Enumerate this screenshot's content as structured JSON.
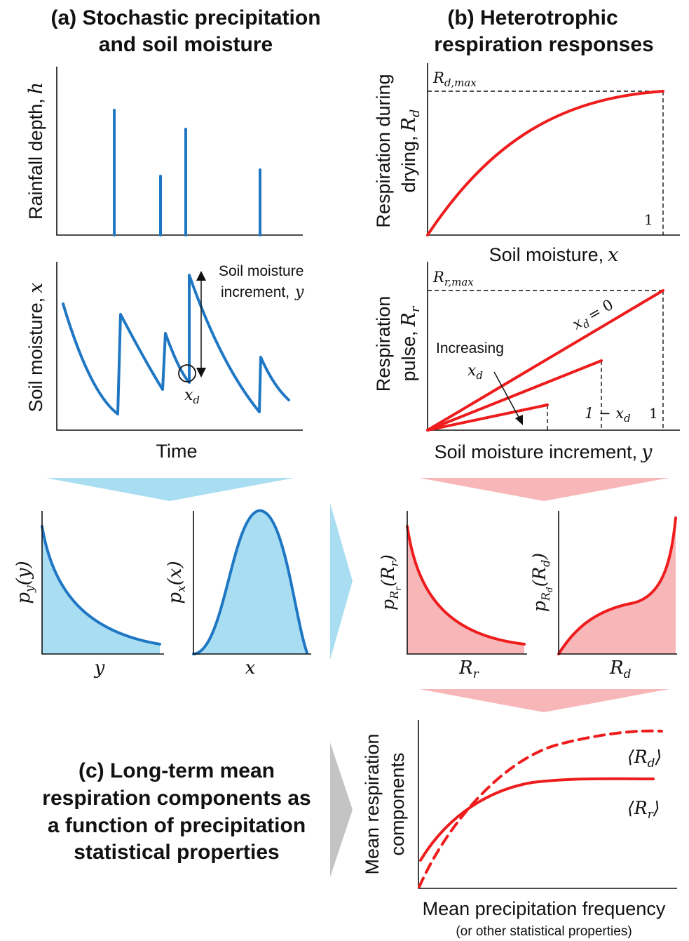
{
  "panel_a": {
    "title_line1": "(a) Stochastic precipitation",
    "title_line2": "and soil moisture",
    "rain_ylabel": "Rainfall depth,",
    "rain_ylabel_var": "h",
    "soil_ylabel": "Soil moisture,",
    "soil_ylabel_var": "x",
    "increment_label_line1": "Soil moisture",
    "increment_label_line2": "increment,",
    "increment_var": "y",
    "xd_label": "x",
    "xd_sub": "d",
    "time_label": "Time"
  },
  "panel_b": {
    "title_line1": "(b) Heterotrophic",
    "title_line2": "respiration responses",
    "rd_ylabel_line1": "Respiration during",
    "rd_ylabel_line2": "drying,",
    "rd_ylabel_var": "R",
    "rd_ylabel_sub": "d",
    "rd_max": "R",
    "rd_max_sub": "d,max",
    "one_label": "1",
    "rd_xlabel": "Soil moisture,",
    "rd_xlabel_var": "x",
    "rr_ylabel_line1": "Respiration",
    "rr_ylabel_line2": "pulse,",
    "rr_ylabel_var": "R",
    "rr_ylabel_sub": "r",
    "rr_max": "R",
    "rr_max_sub": "r,max",
    "xd0_label": "x",
    "xd0_sub": "d",
    "xd0_eq": "= 0",
    "increasing_label": "Increasing",
    "increasing_var": "x",
    "increasing_sub": "d",
    "one_minus": "1 − x",
    "one_minus_sub": "d",
    "one_label2": "1",
    "rr_xlabel": "Soil moisture increment,",
    "rr_xlabel_var": "y"
  },
  "pdfs": {
    "py_label": "p",
    "py_sub": "y",
    "py_arg": "(y)",
    "py_x": "y",
    "px_label": "p",
    "px_sub": "x",
    "px_arg": "(x)",
    "px_x": "x",
    "prr_label": "p",
    "prr_sub": "R",
    "prr_subsub": "r",
    "prr_arg": "(R",
    "prr_argsub": "r",
    "prr_close": ")",
    "prr_x": "R",
    "prr_xsub": "r",
    "prd_label": "p",
    "prd_sub": "R",
    "prd_subsub": "d",
    "prd_arg": "(R",
    "prd_argsub": "d",
    "prd_close": ")",
    "prd_x": "R",
    "prd_xsub": "d"
  },
  "panel_c": {
    "title_line1": "(c) Long-term mean",
    "title_line2": "respiration components as",
    "title_line3": "a function of precipitation",
    "title_line4": "statistical properties",
    "ylabel_line1": "Mean respiration",
    "ylabel_line2": "components",
    "rd_mean": "⟨R",
    "rd_mean_sub": "d",
    "rd_mean_close": "⟩",
    "rr_mean": "⟨R",
    "rr_mean_sub": "r",
    "rr_mean_close": "⟩",
    "xlabel": "Mean precipitation frequency",
    "xlabel_sub": "(or other statistical properties)"
  },
  "colors": {
    "blue": "#1f77c4",
    "light_blue": "#a9def2",
    "red": "#ee1c1c",
    "light_red": "#f7b6b8",
    "grey_arrow": "#c4c4c4"
  }
}
